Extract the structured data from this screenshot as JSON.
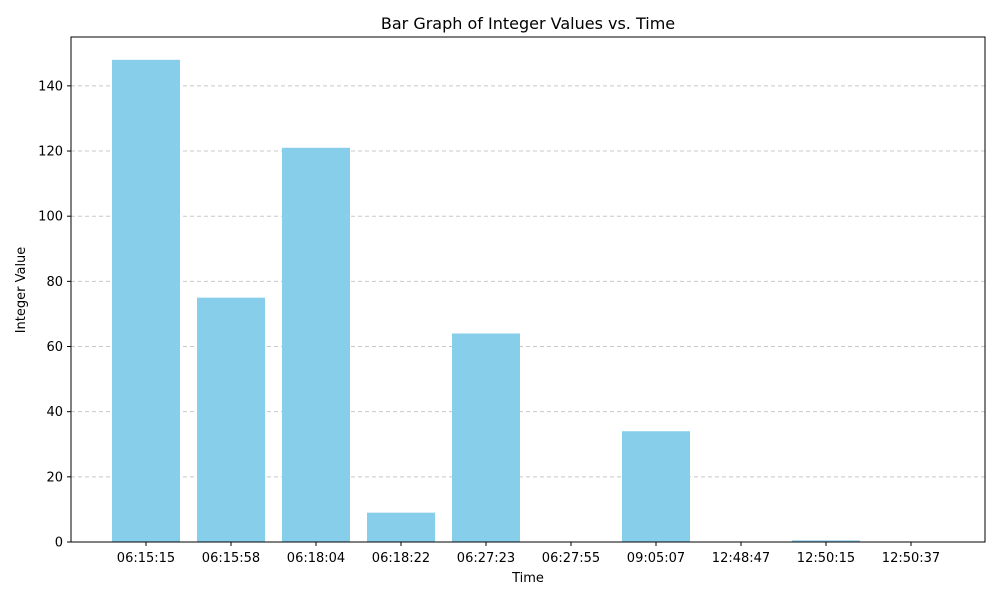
{
  "chart_data": {
    "type": "bar",
    "title": "Bar Graph of Integer Values vs. Time",
    "xlabel": "Time",
    "ylabel": "Integer Value",
    "categories": [
      "06:15:15",
      "06:15:58",
      "06:18:04",
      "06:18:22",
      "06:27:23",
      "06:27:55",
      "09:05:07",
      "12:48:47",
      "12:50:15",
      "12:50:37"
    ],
    "values": [
      148,
      75,
      121,
      9,
      64,
      0,
      34,
      0,
      0.5,
      0
    ],
    "ylim": [
      0,
      155
    ],
    "yticks": [
      "0",
      "20",
      "40",
      "60",
      "80",
      "100",
      "120",
      "140"
    ],
    "grid": "y-dashed",
    "bar_color": "#87ceeb"
  }
}
